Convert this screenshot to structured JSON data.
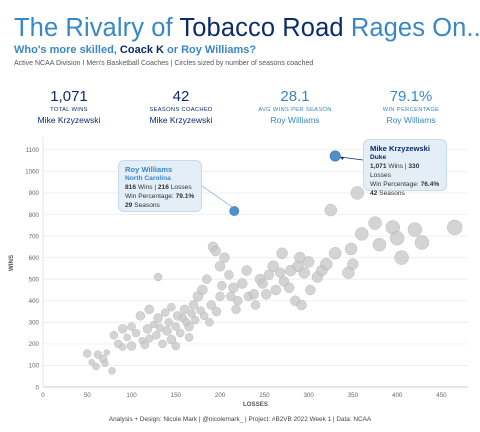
{
  "header": {
    "title_parts": [
      "The Rivalry of ",
      "Tobacco Road",
      " Rages On..."
    ],
    "subtitle_parts": [
      "Who's more skilled, ",
      "Coack K",
      " or Roy Williams?"
    ],
    "note": "Active NCAA Division I Men's Basketball Coaches | Circles sized by number of seasons coached"
  },
  "kpis": [
    {
      "value": "1,071",
      "label": "TOTAL WINS",
      "person": "Mike Krzyzewski",
      "style": "k"
    },
    {
      "value": "42",
      "label": "SEASONS COACHED",
      "person": "Mike Krzyzewski",
      "style": "k"
    },
    {
      "value": "28.1",
      "label": "AVG WINS PER SEASON",
      "person": "Roy Williams",
      "style": "r"
    },
    {
      "value": "79.1%",
      "label": "WIN PERCENTAGE",
      "person": "Roy Williams",
      "style": "r"
    }
  ],
  "tooltips": {
    "roy": {
      "name": "Roy Williams",
      "team": "North Carolina",
      "wins": "816",
      "losses": "216",
      "wins_lbl": " Wins | ",
      "losses_lbl": " Losses",
      "pct_lbl": "Win Percentage: ",
      "pct": "79.1%",
      "seasons": "29",
      "seasons_lbl": " Seasons"
    },
    "k": {
      "name": "Mike Krzyzewski",
      "team": "Duke",
      "wins": "1,071",
      "losses": "330",
      "wins_lbl": " Wins | ",
      "losses_lbl": " Losses",
      "pct_lbl": "Win Percentage: ",
      "pct": "76.4%",
      "seasons": "42",
      "seasons_lbl": " Seasons"
    }
  },
  "footer": "Analysis + Design: Nicole Mark | @nicolemark_ | Project: #B2VB 2022 Week 1 | Data: NCAA",
  "colors": {
    "grey": "#c6c6c6",
    "k": "#0c2a6e",
    "roy": "#3a87c5",
    "tipbg": "#e3eef7"
  },
  "chart_data": {
    "type": "scatter",
    "xlabel": "LOSSES",
    "ylabel": "WINS",
    "xlim": [
      0,
      480
    ],
    "ylim": [
      0,
      1150
    ],
    "xticks": [
      0,
      50,
      100,
      150,
      200,
      250,
      300,
      350,
      400,
      450
    ],
    "yticks": [
      0,
      100,
      200,
      300,
      400,
      500,
      600,
      700,
      800,
      900,
      1000,
      1100
    ],
    "grid": "horizontal",
    "highlights": [
      {
        "name": "Mike Krzyzewski",
        "x": 330,
        "y": 1071,
        "seasons": 42
      },
      {
        "name": "Roy Williams",
        "x": 216,
        "y": 816,
        "seasons": 29
      }
    ],
    "points": [
      [
        50,
        155,
        8
      ],
      [
        55,
        115,
        6
      ],
      [
        60,
        95,
        7
      ],
      [
        62,
        150,
        8
      ],
      [
        68,
        130,
        8
      ],
      [
        70,
        110,
        7
      ],
      [
        72,
        160,
        6
      ],
      [
        78,
        75,
        7
      ],
      [
        80,
        240,
        8
      ],
      [
        85,
        200,
        8
      ],
      [
        90,
        185,
        7
      ],
      [
        90,
        270,
        9
      ],
      [
        95,
        230,
        7
      ],
      [
        100,
        190,
        9
      ],
      [
        100,
        280,
        8
      ],
      [
        105,
        250,
        8
      ],
      [
        110,
        330,
        9
      ],
      [
        112,
        215,
        7
      ],
      [
        115,
        195,
        8
      ],
      [
        118,
        270,
        9
      ],
      [
        120,
        225,
        8
      ],
      [
        120,
        360,
        9
      ],
      [
        125,
        290,
        7
      ],
      [
        128,
        240,
        8
      ],
      [
        130,
        510,
        8
      ],
      [
        130,
        320,
        9
      ],
      [
        132,
        275,
        8
      ],
      [
        135,
        200,
        8
      ],
      [
        138,
        345,
        8
      ],
      [
        140,
        260,
        9
      ],
      [
        142,
        300,
        8
      ],
      [
        145,
        220,
        9
      ],
      [
        145,
        370,
        8
      ],
      [
        150,
        190,
        8
      ],
      [
        150,
        280,
        8
      ],
      [
        152,
        330,
        9
      ],
      [
        155,
        250,
        8
      ],
      [
        158,
        320,
        8
      ],
      [
        160,
        360,
        9
      ],
      [
        162,
        300,
        8
      ],
      [
        165,
        230,
        8
      ],
      [
        165,
        280,
        9
      ],
      [
        168,
        340,
        8
      ],
      [
        170,
        380,
        9
      ],
      [
        172,
        310,
        8
      ],
      [
        175,
        420,
        10
      ],
      [
        178,
        355,
        8
      ],
      [
        180,
        450,
        10
      ],
      [
        182,
        330,
        8
      ],
      [
        185,
        500,
        9
      ],
      [
        188,
        300,
        8
      ],
      [
        190,
        380,
        9
      ],
      [
        192,
        650,
        10
      ],
      [
        195,
        630,
        10
      ],
      [
        196,
        350,
        9
      ],
      [
        200,
        420,
        9
      ],
      [
        200,
        560,
        10
      ],
      [
        202,
        470,
        9
      ],
      [
        205,
        600,
        10
      ],
      [
        210,
        520,
        9
      ],
      [
        212,
        420,
        9
      ],
      [
        215,
        460,
        10
      ],
      [
        218,
        360,
        9
      ],
      [
        220,
        400,
        9
      ],
      [
        225,
        480,
        10
      ],
      [
        230,
        540,
        10
      ],
      [
        232,
        420,
        9
      ],
      [
        238,
        430,
        10
      ],
      [
        240,
        380,
        9
      ],
      [
        245,
        500,
        10
      ],
      [
        248,
        480,
        10
      ],
      [
        252,
        430,
        10
      ],
      [
        255,
        520,
        10
      ],
      [
        260,
        560,
        11
      ],
      [
        263,
        450,
        10
      ],
      [
        268,
        530,
        10
      ],
      [
        270,
        620,
        11
      ],
      [
        272,
        490,
        10
      ],
      [
        278,
        460,
        10
      ],
      [
        280,
        540,
        11
      ],
      [
        285,
        400,
        10
      ],
      [
        288,
        560,
        11
      ],
      [
        290,
        600,
        11
      ],
      [
        292,
        380,
        10
      ],
      [
        295,
        530,
        11
      ],
      [
        300,
        580,
        11
      ],
      [
        302,
        450,
        10
      ],
      [
        310,
        510,
        11
      ],
      [
        315,
        540,
        11
      ],
      [
        320,
        570,
        12
      ],
      [
        325,
        820,
        12
      ],
      [
        330,
        620,
        12
      ],
      [
        345,
        530,
        12
      ],
      [
        348,
        640,
        12
      ],
      [
        350,
        570,
        11
      ],
      [
        355,
        900,
        13
      ],
      [
        360,
        710,
        13
      ],
      [
        375,
        760,
        13
      ],
      [
        380,
        660,
        13
      ],
      [
        395,
        740,
        14
      ],
      [
        400,
        690,
        14
      ],
      [
        405,
        600,
        14
      ],
      [
        420,
        730,
        14
      ],
      [
        428,
        670,
        14
      ],
      [
        465,
        740,
        15
      ]
    ]
  }
}
